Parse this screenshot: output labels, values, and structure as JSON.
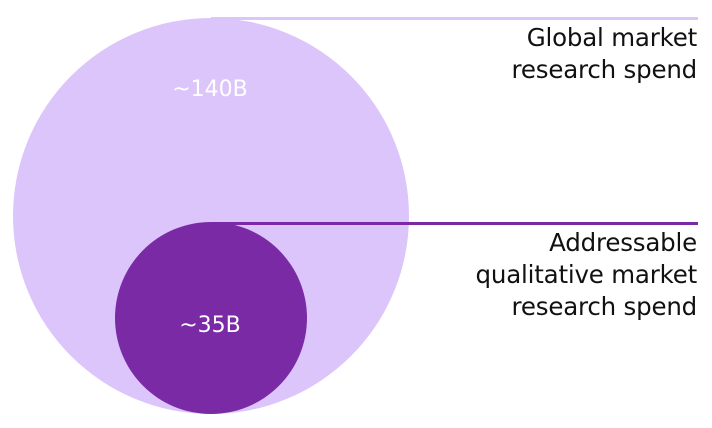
{
  "diagram": {
    "outer": {
      "value": "~140B",
      "label_lines": [
        "Global market",
        "research spend"
      ],
      "color": "#dcc5fb",
      "line_color": "#dcc5fb"
    },
    "inner": {
      "value": "~35B",
      "label_lines": [
        "Addressable",
        "qualitative market",
        "research spend"
      ],
      "color": "#7b2aa6",
      "line_color": "#7b2aa6"
    }
  }
}
